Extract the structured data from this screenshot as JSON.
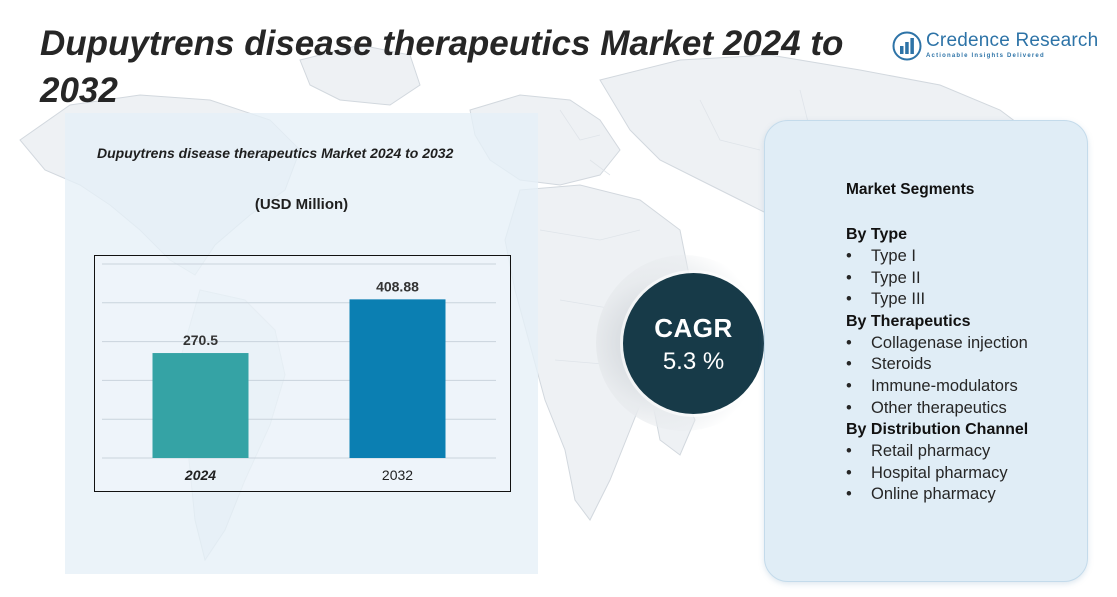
{
  "header": {
    "title": "Dupuytrens disease therapeutics Market 2024 to 2032"
  },
  "logo": {
    "name": "Credence Research",
    "tagline": "Actionable Insights Delivered",
    "icon": "bar-chart-logo-icon"
  },
  "chart_data": {
    "type": "bar",
    "title": "Dupuytrens disease therapeutics Market 2024 to 2032",
    "unit_label": "(USD Million)",
    "categories": [
      "2024",
      "2032"
    ],
    "values": [
      270.5,
      408.88
    ],
    "value_labels": [
      "270.5",
      "408.88"
    ],
    "bar_colors": [
      "#35a3a5",
      "#0b7fb2"
    ],
    "ylim": [
      0,
      500
    ],
    "grid": true,
    "xlabel": "",
    "ylabel": ""
  },
  "cagr": {
    "label": "CAGR",
    "value": "5.3 %"
  },
  "segments": {
    "heading": "Market Segments",
    "groups": [
      {
        "title": "By Type",
        "items": [
          "Type I",
          "Type II",
          "Type III"
        ]
      },
      {
        "title": "By Therapeutics",
        "items": [
          "Collagenase injection",
          "Steroids",
          "Immune-modulators",
          "Other therapeutics"
        ]
      },
      {
        "title": "By Distribution Channel",
        "items": [
          "Retail pharmacy",
          "Hospital pharmacy",
          "Online pharmacy"
        ]
      }
    ],
    "bullet": "•"
  },
  "colors": {
    "title_text": "#262626",
    "brand_blue": "#2d73a7",
    "cagr_circle": "#173a48",
    "panel_bg": "#e5eff7",
    "card_bg": "#e0edf6"
  }
}
